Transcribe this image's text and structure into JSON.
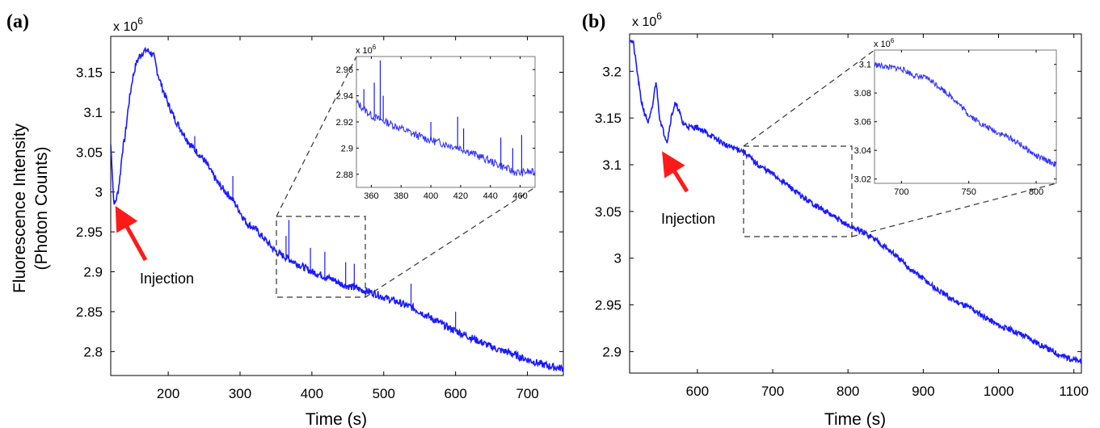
{
  "chart_data": [
    {
      "panel_label": "(a)",
      "type": "line",
      "xlabel": "Time (s)",
      "ylabel_line1": "Fluorescence Intensity",
      "ylabel_line2": "(Photon Counts)",
      "y_multiplier": {
        "base": "x 10",
        "exp": "6"
      },
      "xlim": [
        120,
        750
      ],
      "ylim": [
        2.77,
        3.195
      ],
      "xticks": [
        200,
        300,
        400,
        500,
        600,
        700
      ],
      "yticks": [
        2.8,
        2.85,
        2.9,
        2.95,
        3,
        3.05,
        3.1,
        3.15
      ],
      "ytick_labels": [
        "2.8",
        "2.85",
        "2.9",
        "2.95",
        "3",
        "3.05",
        "3.1",
        "3.15"
      ],
      "line_color": "#1a1aff",
      "series": [
        {
          "x": [
            120,
            122,
            124,
            126,
            128,
            130,
            133,
            136,
            140,
            145,
            150,
            155,
            160,
            165,
            170,
            175,
            180,
            185,
            190,
            200,
            210,
            220,
            230,
            240,
            250,
            260,
            270,
            280,
            290,
            300,
            305,
            310,
            320,
            330,
            340,
            345,
            350,
            355,
            360,
            370,
            380,
            390,
            400,
            410,
            420,
            430,
            440,
            450,
            460,
            470,
            480,
            490,
            500,
            510,
            520,
            530,
            540,
            550,
            560,
            570,
            580,
            590,
            600,
            610,
            620,
            630,
            640,
            650,
            660,
            670,
            680,
            690,
            700,
            710,
            720,
            730,
            740,
            750
          ],
          "y": [
            3.06,
            3.03,
            2.99,
            2.985,
            2.992,
            3.0,
            3.02,
            3.05,
            3.07,
            3.11,
            3.14,
            3.16,
            3.17,
            3.175,
            3.178,
            3.175,
            3.17,
            3.15,
            3.135,
            3.11,
            3.09,
            3.075,
            3.06,
            3.05,
            3.04,
            3.025,
            3.01,
            3.0,
            2.99,
            2.975,
            2.967,
            2.96,
            2.955,
            2.945,
            2.935,
            2.93,
            2.925,
            2.922,
            2.92,
            2.915,
            2.91,
            2.905,
            2.9,
            2.897,
            2.893,
            2.89,
            2.885,
            2.882,
            2.88,
            2.877,
            2.875,
            2.872,
            2.868,
            2.865,
            2.862,
            2.858,
            2.855,
            2.85,
            2.845,
            2.84,
            2.835,
            2.83,
            2.826,
            2.822,
            2.818,
            2.814,
            2.81,
            2.806,
            2.802,
            2.8,
            2.797,
            2.793,
            2.79,
            2.787,
            2.784,
            2.782,
            2.78,
            2.779
          ]
        }
      ],
      "spikes": [
        {
          "x": 368,
          "y": 2.965
        },
        {
          "x": 364,
          "y": 2.945
        },
        {
          "x": 398,
          "y": 2.93
        },
        {
          "x": 418,
          "y": 2.925
        },
        {
          "x": 447,
          "y": 2.912
        },
        {
          "x": 459,
          "y": 2.91
        },
        {
          "x": 290,
          "y": 3.02
        },
        {
          "x": 237,
          "y": 3.07
        },
        {
          "x": 538,
          "y": 2.885
        },
        {
          "x": 600,
          "y": 2.85
        }
      ],
      "annotation": {
        "text": "Injection",
        "x": 128,
        "y": 2.985
      },
      "zoom_box": {
        "xlim": [
          350,
          470
        ],
        "ylim": [
          2.868,
          2.968
        ]
      },
      "inset": {
        "y_multiplier": {
          "base": "x 10",
          "exp": "6"
        },
        "xlim": [
          350,
          470
        ],
        "ylim": [
          2.87,
          2.97
        ],
        "xticks": [
          360,
          380,
          400,
          420,
          440,
          460
        ],
        "yticks": [
          2.88,
          2.9,
          2.92,
          2.94,
          2.96
        ],
        "ytick_labels": [
          "2.88",
          "2.9",
          "2.92",
          "2.94",
          "2.96"
        ],
        "series": [
          {
            "x": [
              350,
              355,
              360,
              365,
              370,
              380,
              390,
              400,
              410,
              420,
              430,
              440,
              450,
              455,
              460,
              465,
              470
            ],
            "y": [
              2.935,
              2.93,
              2.925,
              2.922,
              2.92,
              2.915,
              2.91,
              2.906,
              2.903,
              2.9,
              2.895,
              2.89,
              2.885,
              2.882,
              2.881,
              2.882,
              2.881
            ]
          }
        ],
        "spikes": [
          {
            "x": 355,
            "y": 2.945
          },
          {
            "x": 362,
            "y": 2.95
          },
          {
            "x": 366,
            "y": 2.967
          },
          {
            "x": 368,
            "y": 2.94
          },
          {
            "x": 400,
            "y": 2.92
          },
          {
            "x": 418,
            "y": 2.924
          },
          {
            "x": 422,
            "y": 2.915
          },
          {
            "x": 447,
            "y": 2.908
          },
          {
            "x": 455,
            "y": 2.9
          },
          {
            "x": 461,
            "y": 2.91
          }
        ]
      }
    },
    {
      "panel_label": "(b)",
      "type": "line",
      "xlabel": "Time (s)",
      "y_multiplier": {
        "base": "x 10",
        "exp": "6"
      },
      "xlim": [
        510,
        1110
      ],
      "ylim": [
        2.877,
        3.24
      ],
      "xticks": [
        600,
        700,
        800,
        900,
        1000,
        1100
      ],
      "yticks": [
        2.9,
        2.95,
        3,
        3.05,
        3.1,
        3.15,
        3.2
      ],
      "ytick_labels": [
        "2.9",
        "2.95",
        "3",
        "3.05",
        "3.1",
        "3.15",
        "3.2"
      ],
      "line_color": "#1a1aff",
      "series": [
        {
          "x": [
            510,
            515,
            520,
            525,
            530,
            535,
            540,
            545,
            550,
            555,
            560,
            565,
            570,
            575,
            580,
            590,
            600,
            620,
            640,
            660,
            680,
            700,
            720,
            740,
            760,
            780,
            800,
            820,
            840,
            860,
            880,
            900,
            920,
            940,
            960,
            980,
            1000,
            1020,
            1040,
            1060,
            1080,
            1100,
            1110
          ],
          "y": [
            3.235,
            3.23,
            3.2,
            3.17,
            3.155,
            3.145,
            3.16,
            3.19,
            3.15,
            3.135,
            3.125,
            3.15,
            3.165,
            3.16,
            3.145,
            3.14,
            3.14,
            3.13,
            3.12,
            3.115,
            3.1,
            3.09,
            3.078,
            3.065,
            3.055,
            3.045,
            3.035,
            3.028,
            3.018,
            3.005,
            2.99,
            2.978,
            2.965,
            2.955,
            2.948,
            2.938,
            2.928,
            2.922,
            2.915,
            2.905,
            2.897,
            2.891,
            2.889
          ]
        }
      ],
      "annotation": {
        "text": "Injection",
        "x": 560,
        "y": 3.125
      },
      "zoom_box": {
        "xlim": [
          665,
          808
        ],
        "ylim": [
          3.018,
          3.118
        ]
      },
      "inset": {
        "y_multiplier": {
          "base": "x 10",
          "exp": "6"
        },
        "xlim": [
          680,
          815
        ],
        "ylim": [
          3.017,
          3.11
        ],
        "xticks": [
          700,
          750,
          800
        ],
        "yticks": [
          3.02,
          3.04,
          3.06,
          3.08,
          3.1
        ],
        "ytick_labels": [
          "3.02",
          "3.04",
          "3.06",
          "3.08",
          "3.1"
        ],
        "series": [
          {
            "x": [
              680,
              690,
              700,
              710,
              720,
              730,
              740,
              750,
              760,
              770,
              780,
              790,
              800,
              810,
              815
            ],
            "y": [
              3.1,
              3.098,
              3.097,
              3.092,
              3.09,
              3.083,
              3.075,
              3.065,
              3.058,
              3.053,
              3.049,
              3.043,
              3.036,
              3.032,
              3.03
            ]
          }
        ]
      }
    }
  ]
}
